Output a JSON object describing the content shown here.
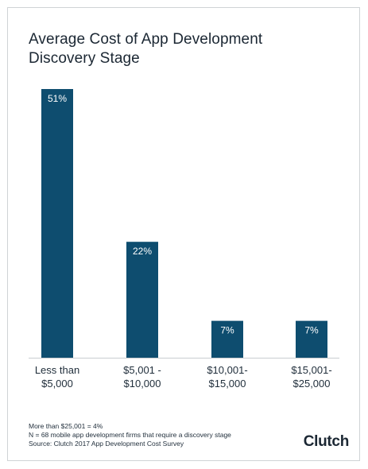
{
  "title_lines": [
    "Average Cost of App Development",
    "Discovery Stage"
  ],
  "chart_data": {
    "type": "bar",
    "title": "Average Cost of App Development Discovery Stage",
    "categories": [
      [
        "Less than",
        "$5,000"
      ],
      [
        "$5,001 -",
        "$10,000"
      ],
      [
        "$10,001-",
        "$15,000"
      ],
      [
        "$15,001-",
        "$25,000"
      ]
    ],
    "values": [
      51,
      22,
      7,
      7
    ],
    "value_labels": [
      "51%",
      "22%",
      "7%",
      "7%"
    ],
    "unit": "%",
    "ylim": [
      0,
      51
    ],
    "grid": false,
    "bar_color": "#0e4d6f"
  },
  "notes": [
    "More than $25,001 = 4%",
    "N = 68 mobile app development firms that require a discovery stage",
    "Source: Clutch 2017 App Development Cost Survey"
  ],
  "logo_text": "Clutch"
}
